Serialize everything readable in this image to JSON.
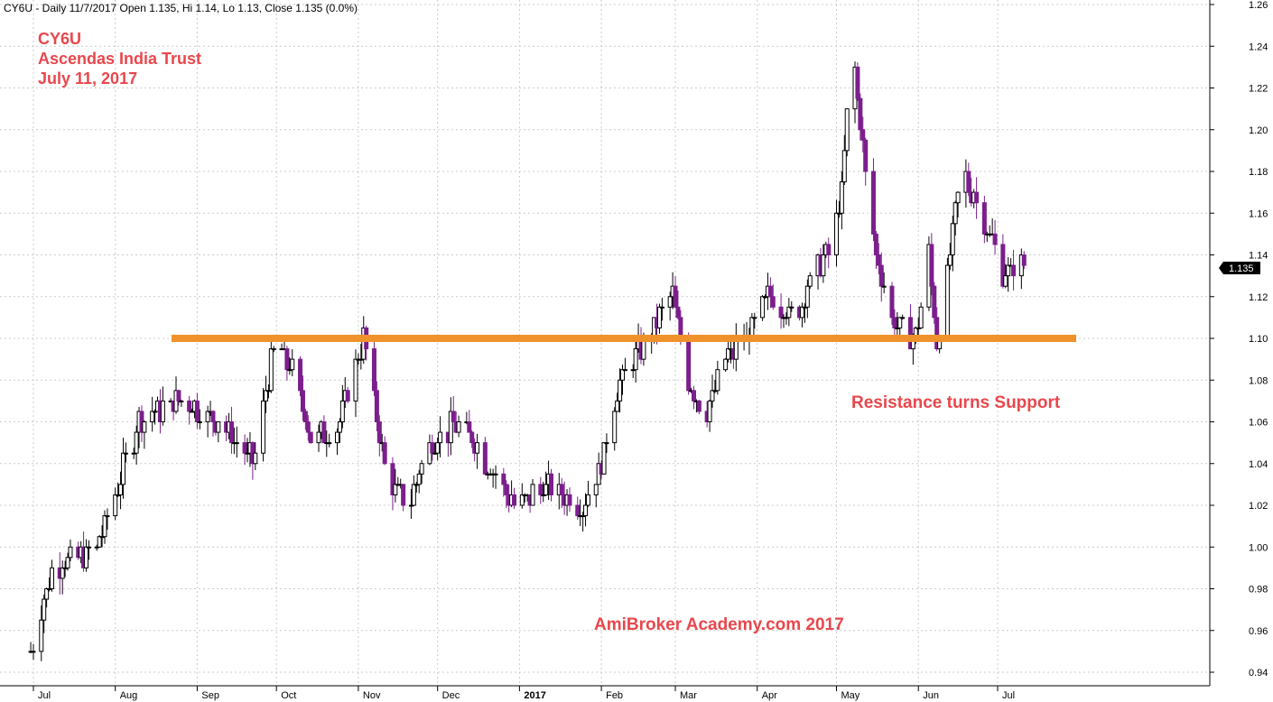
{
  "header": {
    "info": "CY6U - Daily 11/7/2017 Open 1.135, Hi 1.14, Lo 1.13, Close 1.135 (0.0%)"
  },
  "title_block": {
    "ticker": "CY6U",
    "company": "Ascendas India Trust",
    "date": "July 11, 2017"
  },
  "annotations": {
    "resistance_label": "Resistance turns Support",
    "watermark": "AmiBroker Academy.com  2017"
  },
  "colors": {
    "up_candle_outline": "#000000",
    "down_candle": "#7b1f8c",
    "support_line": "#f0922b",
    "annotation_text": "#e8474c",
    "grid": "#cccccc"
  },
  "chart_data": {
    "type": "candlestick",
    "title": "",
    "xlabel": "",
    "ylabel": "",
    "ylim": [
      0.93,
      1.26
    ],
    "y_ticks": [
      "1.26",
      "1.24",
      "1.22",
      "1.20",
      "1.18",
      "1.16",
      "1.14",
      "1.12",
      "1.10",
      "1.08",
      "1.06",
      "1.04",
      "1.02",
      "1.00",
      "0.98",
      "0.96",
      "0.94"
    ],
    "x_ticks": [
      "Jul",
      "Aug",
      "Sep",
      "Oct",
      "Nov",
      "Dec",
      "2017",
      "Feb",
      "Mar",
      "Apr",
      "May",
      "Jun",
      "Jul"
    ],
    "grid": true,
    "last_price_label": "1.135",
    "support_line": {
      "price": 1.1,
      "from": "Aug",
      "to": "Jul"
    },
    "checkpoints": [
      {
        "date": "2016-06-30",
        "close": 0.95
      },
      {
        "date": "2016-07-08",
        "close": 0.99
      },
      {
        "date": "2016-07-25",
        "close": 1.0
      },
      {
        "date": "2016-08-10",
        "close": 1.06
      },
      {
        "date": "2016-08-25",
        "close": 1.07
      },
      {
        "date": "2016-09-10",
        "close": 1.06
      },
      {
        "date": "2016-09-22",
        "close": 1.04
      },
      {
        "date": "2016-10-01",
        "close": 1.1
      },
      {
        "date": "2016-10-08",
        "close": 1.08
      },
      {
        "date": "2016-10-15",
        "close": 1.05
      },
      {
        "date": "2016-10-25",
        "close": 1.06
      },
      {
        "date": "2016-11-03",
        "close": 1.1
      },
      {
        "date": "2016-11-12",
        "close": 1.03
      },
      {
        "date": "2016-11-20",
        "close": 1.02
      },
      {
        "date": "2016-11-28",
        "close": 1.05
      },
      {
        "date": "2016-12-10",
        "close": 1.06
      },
      {
        "date": "2016-12-25",
        "close": 1.03
      },
      {
        "date": "2016-12-31",
        "close": 1.02
      },
      {
        "date": "2017-01-12",
        "close": 1.03
      },
      {
        "date": "2017-01-25",
        "close": 1.02
      },
      {
        "date": "2017-02-01",
        "close": 1.04
      },
      {
        "date": "2017-02-08",
        "close": 1.08
      },
      {
        "date": "2017-02-18",
        "close": 1.1
      },
      {
        "date": "2017-02-28",
        "close": 1.12
      },
      {
        "date": "2017-03-06",
        "close": 1.08
      },
      {
        "date": "2017-03-12",
        "close": 1.06
      },
      {
        "date": "2017-03-20",
        "close": 1.09
      },
      {
        "date": "2017-03-28",
        "close": 1.1
      },
      {
        "date": "2017-04-05",
        "close": 1.12
      },
      {
        "date": "2017-04-15",
        "close": 1.11
      },
      {
        "date": "2017-04-22",
        "close": 1.13
      },
      {
        "date": "2017-04-28",
        "close": 1.14
      },
      {
        "date": "2017-05-03",
        "close": 1.17
      },
      {
        "date": "2017-05-07",
        "close": 1.24
      },
      {
        "date": "2017-05-12",
        "close": 1.18
      },
      {
        "date": "2017-05-16",
        "close": 1.14
      },
      {
        "date": "2017-05-22",
        "close": 1.11
      },
      {
        "date": "2017-05-31",
        "close": 1.1
      },
      {
        "date": "2017-06-05",
        "close": 1.14
      },
      {
        "date": "2017-06-08",
        "close": 1.1
      },
      {
        "date": "2017-06-12",
        "close": 1.13
      },
      {
        "date": "2017-06-17",
        "close": 1.18
      },
      {
        "date": "2017-06-22",
        "close": 1.17
      },
      {
        "date": "2017-06-28",
        "close": 1.15
      },
      {
        "date": "2017-07-03",
        "close": 1.13
      },
      {
        "date": "2017-07-11",
        "close": 1.135
      }
    ]
  }
}
